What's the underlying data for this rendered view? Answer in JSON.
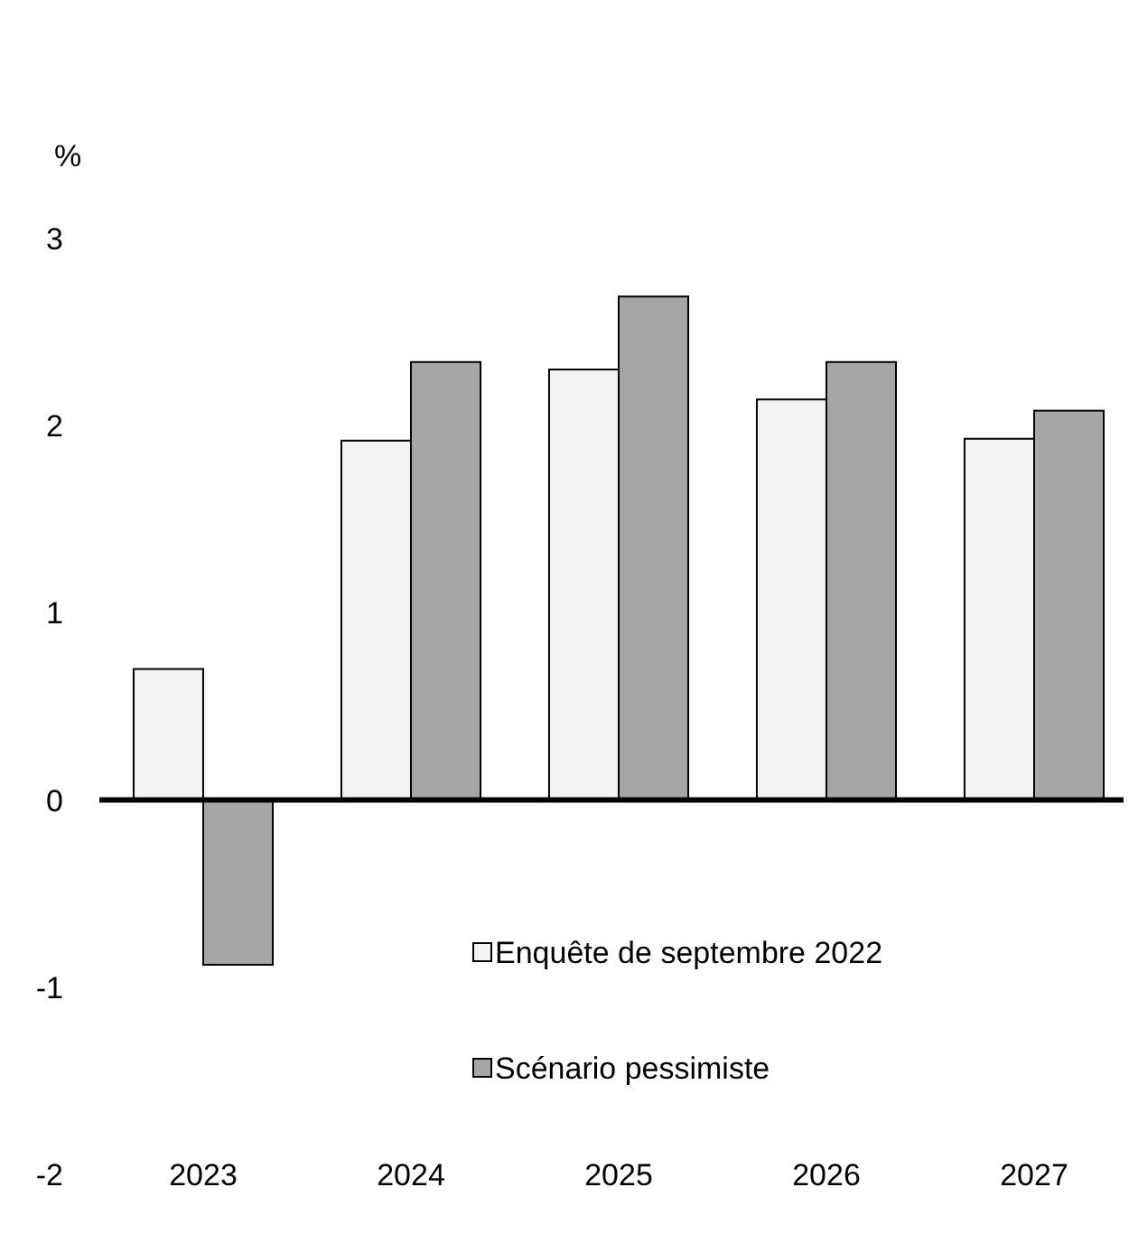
{
  "chart_data": {
    "type": "bar",
    "ylabel": "%",
    "categories": [
      "2023",
      "2024",
      "2025",
      "2026",
      "2027"
    ],
    "series": [
      {
        "name": "Enquête de septembre 2022",
        "color": "#f2f2f2",
        "values": [
          0.7,
          1.92,
          2.3,
          2.14,
          1.93
        ]
      },
      {
        "name": "Scénario pessimiste",
        "color": "#a6a6a6",
        "values": [
          -0.88,
          2.34,
          2.69,
          2.34,
          2.08
        ]
      }
    ],
    "ylim": [
      -2,
      3
    ],
    "yticks": [
      -2,
      -1,
      0,
      1,
      2,
      3
    ],
    "legend": "bottom right"
  }
}
